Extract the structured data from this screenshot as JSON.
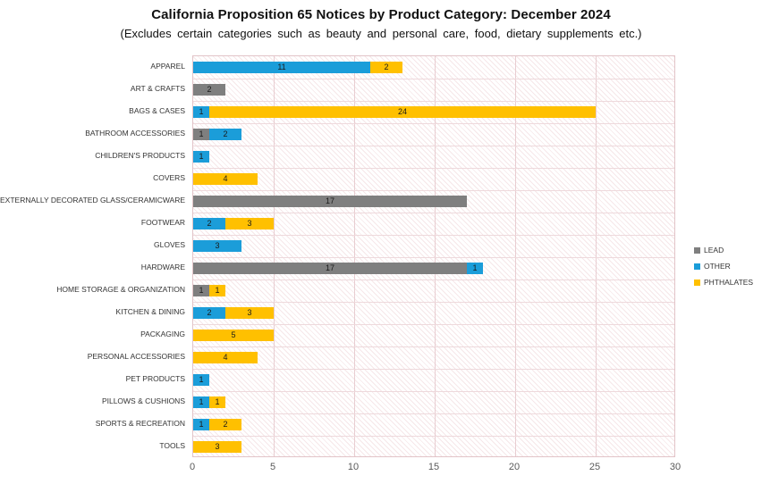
{
  "title": "California Proposition 65 Notices by Product Category: December 2024",
  "subtitle": "(Excludes certain categories such as beauty and personal care, food, dietary supplements etc.)",
  "chart_data": {
    "type": "bar",
    "orientation": "horizontal",
    "stacked": true,
    "title": "California Proposition 65 Notices by Product Category: December 2024",
    "subtitle": "(Excludes certain categories such as beauty and personal care, food, dietary supplements etc.)",
    "categories": [
      "APPAREL",
      "ART & CRAFTS",
      "BAGS & CASES",
      "BATHROOM ACCESSORIES",
      "CHILDREN'S PRODUCTS",
      "COVERS",
      "EXTERNALLY DECORATED GLASS/CERAMICWARE",
      "FOOTWEAR",
      "GLOVES",
      "HARDWARE",
      "HOME STORAGE & ORGANIZATION",
      "KITCHEN & DINING",
      "PACKAGING",
      "PERSONAL ACCESSORIES",
      "PET PRODUCTS",
      "PILLOWS & CUSHIONS",
      "SPORTS & RECREATION",
      "TOOLS"
    ],
    "series": [
      {
        "name": "LEAD",
        "color": "#7f7f7f",
        "values": [
          0,
          2,
          0,
          1,
          0,
          0,
          17,
          0,
          0,
          17,
          1,
          0,
          0,
          0,
          0,
          0,
          0,
          0
        ]
      },
      {
        "name": "OTHER",
        "color": "#1b9dd9",
        "values": [
          11,
          0,
          1,
          2,
          1,
          0,
          0,
          2,
          3,
          1,
          0,
          2,
          0,
          0,
          1,
          1,
          1,
          0
        ]
      },
      {
        "name": "PHTHALATES",
        "color": "#ffc000",
        "values": [
          2,
          0,
          24,
          0,
          0,
          4,
          0,
          3,
          0,
          0,
          1,
          3,
          5,
          4,
          0,
          1,
          2,
          3
        ]
      }
    ],
    "x_axis": {
      "min": 0,
      "max": 30,
      "ticks": [
        0,
        5,
        10,
        15,
        20,
        25,
        30
      ]
    },
    "xlabel": "",
    "ylabel": "",
    "grid": true,
    "data_labels": true,
    "legend_position": "right"
  },
  "colors": {
    "grid": "#e8cdd1",
    "plot_border": "#e2c4c8",
    "tick_text": "#595959"
  }
}
